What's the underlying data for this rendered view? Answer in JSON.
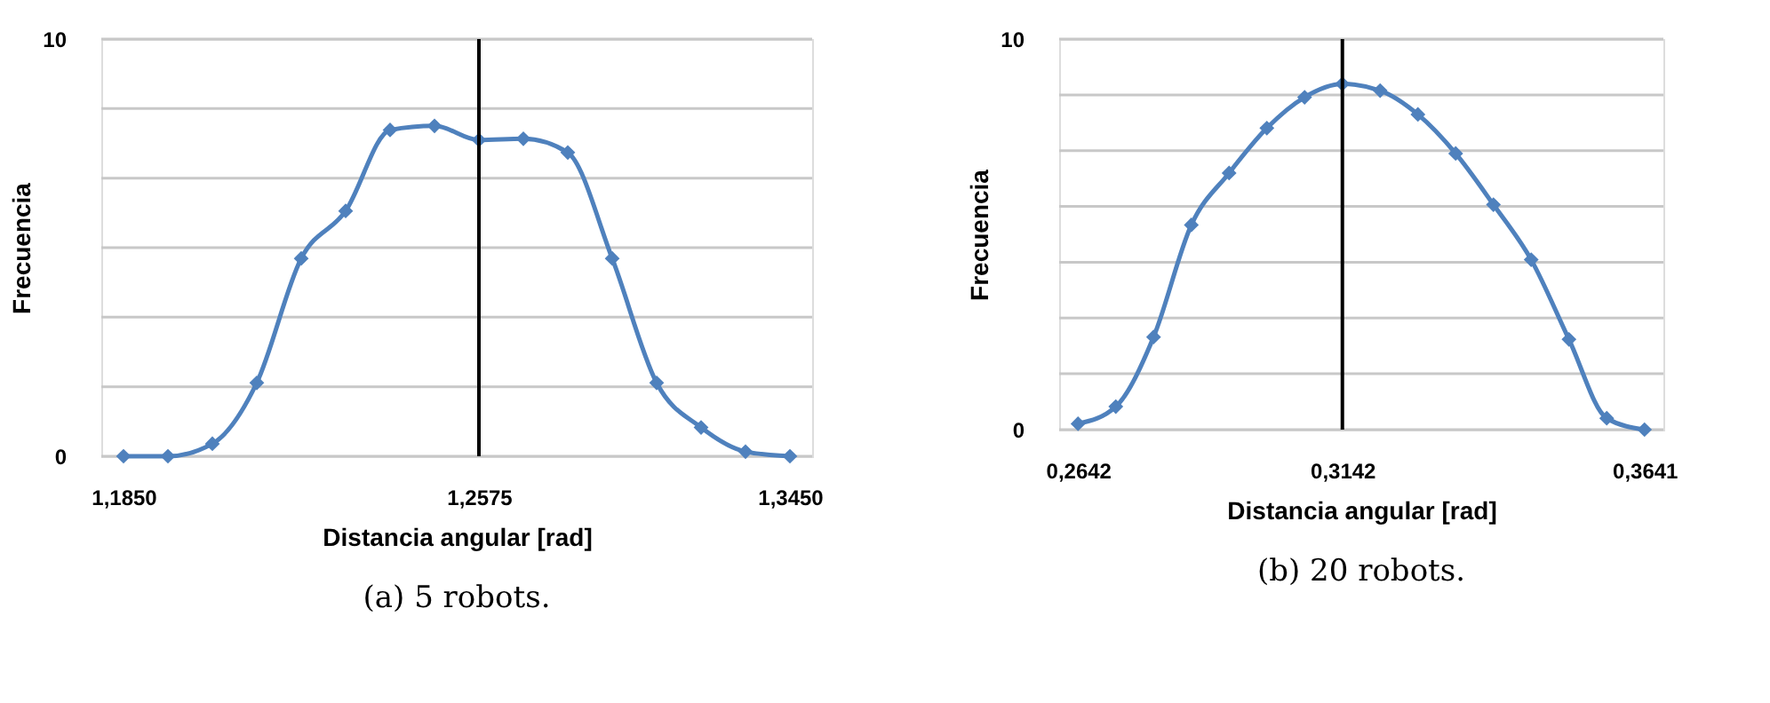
{
  "chart_data": [
    {
      "type": "line",
      "xlabel": "Distancia angular [rad]",
      "ylabel": "Frecuencia",
      "categories": [
        "1,1850",
        null,
        null,
        null,
        null,
        null,
        null,
        null,
        "1,2575",
        null,
        null,
        null,
        null,
        null,
        null,
        "1,3450"
      ],
      "series": [
        {
          "color": "#4f81bd",
          "values": [
            0,
            0,
            0.3,
            1.76,
            4.74,
            5.88,
            7.82,
            7.92,
            7.58,
            7.61,
            7.28,
            4.74,
            1.76,
            0.69,
            0.11,
            0
          ]
        }
      ],
      "ylim": [
        0,
        10
      ],
      "yticks": [
        0,
        {
          "value": 1.667,
          "label": null
        },
        {
          "value": 3.333,
          "label": null
        },
        {
          "value": 5,
          "label": null
        },
        {
          "value": 6.667,
          "label": null
        },
        {
          "value": 8.333,
          "label": null
        },
        10
      ],
      "ref_lines": [
        {
          "axis": "x",
          "value": "1,2575",
          "color": "#000000"
        }
      ],
      "grid": "y",
      "marker": "diamond",
      "line_style": "solid",
      "annotations": [
        "(a) 5 robots."
      ]
    },
    {
      "type": "line",
      "xlabel": "Distancia angular [rad]",
      "ylabel": "Frecuencia",
      "categories": [
        "0,2642",
        null,
        null,
        null,
        null,
        null,
        null,
        "0,3142",
        null,
        null,
        null,
        null,
        null,
        null,
        null,
        "0,3641"
      ],
      "series": [
        {
          "color": "#4f81bd",
          "values": [
            0.15,
            0.59,
            2.37,
            5.24,
            6.57,
            7.72,
            8.51,
            8.85,
            8.68,
            8.07,
            7.07,
            5.76,
            4.35,
            2.31,
            0.29,
            0
          ]
        }
      ],
      "ylim": [
        0,
        10
      ],
      "yticks": [
        0,
        {
          "value": 1.429,
          "label": null
        },
        {
          "value": 2.857,
          "label": null
        },
        {
          "value": 4.286,
          "label": null
        },
        {
          "value": 5.714,
          "label": null
        },
        {
          "value": 7.143,
          "label": null
        },
        {
          "value": 8.571,
          "label": null
        },
        10
      ],
      "ref_lines": [
        {
          "axis": "x",
          "value": "0,3142",
          "color": "#000000"
        }
      ],
      "grid": "y",
      "marker": "diamond",
      "line_style": "solid",
      "annotations": [
        "(b) 20 robots."
      ]
    }
  ]
}
